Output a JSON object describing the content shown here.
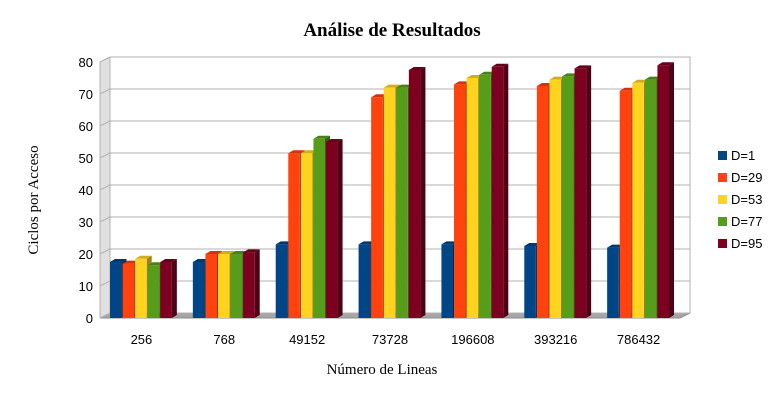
{
  "chart_data": {
    "type": "bar",
    "title": "Análise de Resultados",
    "xlabel": "Número de Lineas",
    "ylabel": "Ciclos por Acceso",
    "categories": [
      "256",
      "768",
      "49152",
      "73728",
      "196608",
      "393216",
      "786432"
    ],
    "ylim": [
      0,
      80
    ],
    "yticks": [
      0,
      10,
      20,
      30,
      40,
      50,
      60,
      70,
      80
    ],
    "grid": true,
    "legend": "right",
    "series": [
      {
        "name": "D=1",
        "color": "#004586",
        "values": [
          17.5,
          17.5,
          23,
          23,
          23,
          22.5,
          22
        ]
      },
      {
        "name": "D=29",
        "color": "#ff420e",
        "values": [
          17,
          20,
          51.5,
          69,
          73,
          72.5,
          71
        ]
      },
      {
        "name": "D=53",
        "color": "#ffd320",
        "values": [
          18.5,
          20,
          51.5,
          72,
          75,
          74.5,
          73.5
        ]
      },
      {
        "name": "D=77",
        "color": "#579d1c",
        "values": [
          16.5,
          20,
          56,
          72,
          76,
          75.5,
          74.5
        ]
      },
      {
        "name": "D=95",
        "color": "#7e0021",
        "values": [
          17.5,
          20.5,
          55,
          77.5,
          78.5,
          78,
          79
        ]
      }
    ]
  }
}
